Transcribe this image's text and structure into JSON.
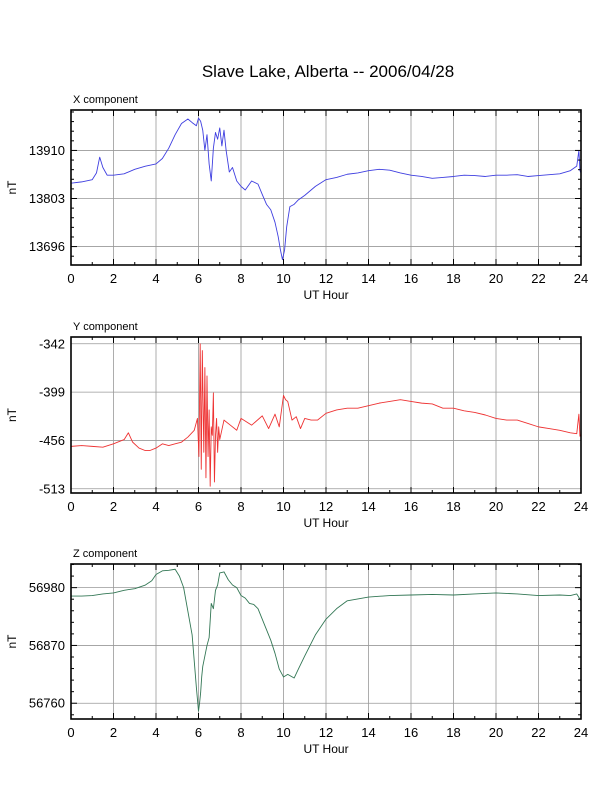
{
  "page_title": "Slave Lake, Alberta -- 2006/04/28",
  "chart_data": [
    {
      "type": "line",
      "title": "X component",
      "xlabel": "UT Hour",
      "ylabel": "nT",
      "color": "#3f3fe0",
      "xlim": [
        0,
        24
      ],
      "ylim": [
        13655,
        14000
      ],
      "xticks": [
        0,
        2,
        4,
        6,
        8,
        10,
        12,
        14,
        16,
        18,
        20,
        22,
        24
      ],
      "yticks": [
        13696,
        13803,
        13910
      ],
      "grid": true,
      "series": [
        {
          "x": [
            0,
            0.5,
            1.0,
            1.2,
            1.35,
            1.5,
            1.7,
            2.0,
            2.5,
            3.0,
            3.5,
            4.0,
            4.3,
            4.6,
            4.9,
            5.2,
            5.5,
            5.7,
            5.9,
            6.0,
            6.1,
            6.2,
            6.3,
            6.4,
            6.5,
            6.6,
            6.7,
            6.8,
            6.9,
            7.0,
            7.1,
            7.2,
            7.3,
            7.45,
            7.6,
            7.8,
            8.0,
            8.2,
            8.5,
            8.8,
            9.0,
            9.2,
            9.4,
            9.6,
            9.75,
            9.85,
            9.95,
            10.05,
            10.15,
            10.3,
            10.5,
            10.7,
            11.0,
            11.5,
            12.0,
            12.5,
            13.0,
            13.5,
            14.0,
            14.5,
            15.0,
            15.5,
            16.0,
            16.5,
            17.0,
            17.5,
            18.0,
            18.5,
            19.0,
            19.5,
            20.0,
            20.5,
            21.0,
            21.5,
            22.0,
            22.5,
            23.0,
            23.5,
            23.8,
            23.9,
            23.95,
            24.0
          ],
          "values": [
            13837,
            13840,
            13845,
            13860,
            13895,
            13872,
            13855,
            13855,
            13858,
            13868,
            13875,
            13880,
            13892,
            13915,
            13945,
            13970,
            13980,
            13972,
            13965,
            13982,
            13975,
            13955,
            13910,
            13945,
            13880,
            13842,
            13915,
            13950,
            13935,
            13960,
            13920,
            13955,
            13910,
            13862,
            13872,
            13842,
            13830,
            13822,
            13842,
            13835,
            13812,
            13790,
            13778,
            13750,
            13718,
            13690,
            13667,
            13688,
            13740,
            13785,
            13790,
            13800,
            13810,
            13830,
            13845,
            13850,
            13857,
            13860,
            13865,
            13868,
            13866,
            13860,
            13855,
            13852,
            13848,
            13850,
            13852,
            13855,
            13854,
            13852,
            13855,
            13855,
            13856,
            13852,
            13854,
            13856,
            13858,
            13865,
            13875,
            13910,
            13865,
            13860
          ]
        }
      ]
    },
    {
      "type": "line",
      "title": "Y component",
      "xlabel": "UT Hour",
      "ylabel": "nT",
      "color": "#ee3333",
      "xlim": [
        0,
        24
      ],
      "ylim": [
        -518,
        -334
      ],
      "xticks": [
        0,
        2,
        4,
        6,
        8,
        10,
        12,
        14,
        16,
        18,
        20,
        22,
        24
      ],
      "yticks": [
        -342,
        -399,
        -456,
        -513
      ],
      "grid": true,
      "series": [
        {
          "x": [
            0,
            0.5,
            1.0,
            1.5,
            2.0,
            2.5,
            2.7,
            2.9,
            3.2,
            3.5,
            3.7,
            4.0,
            4.3,
            4.6,
            4.9,
            5.2,
            5.5,
            5.8,
            5.95,
            6.02,
            6.08,
            6.13,
            6.18,
            6.25,
            6.3,
            6.35,
            6.4,
            6.45,
            6.5,
            6.55,
            6.6,
            6.65,
            6.7,
            6.75,
            6.8,
            6.85,
            6.9,
            6.95,
            7.0,
            7.2,
            7.5,
            7.8,
            8.0,
            8.5,
            9.0,
            9.3,
            9.6,
            9.8,
            10.0,
            10.1,
            10.2,
            10.4,
            10.6,
            10.8,
            11.0,
            11.3,
            11.6,
            12.0,
            12.5,
            13.0,
            13.5,
            14.0,
            14.5,
            15.0,
            15.5,
            16.0,
            16.5,
            17.0,
            17.5,
            18.0,
            18.5,
            19.0,
            19.5,
            20.0,
            20.5,
            21.0,
            21.5,
            22.0,
            22.5,
            23.0,
            23.5,
            23.8,
            23.9,
            23.95,
            24.0
          ],
          "values": [
            -463,
            -462,
            -463,
            -464,
            -460,
            -455,
            -447,
            -458,
            -465,
            -468,
            -468,
            -465,
            -460,
            -462,
            -460,
            -458,
            -452,
            -444,
            -430,
            -475,
            -342,
            -490,
            -350,
            -470,
            -370,
            -500,
            -380,
            -475,
            -420,
            -510,
            -440,
            -450,
            -400,
            -505,
            -450,
            -430,
            -470,
            -440,
            -455,
            -432,
            -438,
            -444,
            -430,
            -438,
            -427,
            -442,
            -425,
            -440,
            -403,
            -408,
            -410,
            -432,
            -428,
            -442,
            -430,
            -432,
            -432,
            -424,
            -420,
            -418,
            -418,
            -415,
            -412,
            -410,
            -408,
            -410,
            -412,
            -413,
            -418,
            -418,
            -421,
            -423,
            -426,
            -430,
            -432,
            -432,
            -436,
            -440,
            -442,
            -444,
            -447,
            -448,
            -425,
            -451,
            -449
          ]
        }
      ]
    },
    {
      "type": "line",
      "title": "Z component",
      "xlabel": "UT Hour",
      "ylabel": "nT",
      "color": "#337755",
      "xlim": [
        0,
        24
      ],
      "ylim": [
        56730,
        57025
      ],
      "xticks": [
        0,
        2,
        4,
        6,
        8,
        10,
        12,
        14,
        16,
        18,
        20,
        22,
        24
      ],
      "yticks": [
        56760,
        56870,
        56980
      ],
      "grid": true,
      "series": [
        {
          "x": [
            0,
            0.5,
            1.0,
            1.5,
            2.0,
            2.5,
            3.0,
            3.5,
            3.8,
            4.0,
            4.3,
            4.6,
            4.9,
            5.1,
            5.3,
            5.5,
            5.7,
            5.8,
            5.9,
            6.0,
            6.05,
            6.1,
            6.15,
            6.2,
            6.3,
            6.4,
            6.5,
            6.6,
            6.7,
            6.8,
            6.9,
            7.0,
            7.2,
            7.4,
            7.6,
            7.8,
            8.0,
            8.2,
            8.4,
            8.6,
            8.8,
            9.0,
            9.2,
            9.4,
            9.6,
            9.8,
            10.0,
            10.2,
            10.5,
            10.7,
            11.0,
            11.5,
            12.0,
            12.5,
            13.0,
            14.0,
            15.0,
            16.0,
            17.0,
            18.0,
            19.0,
            20.0,
            21.0,
            22.0,
            23.0,
            23.5,
            23.8,
            24.0
          ],
          "values": [
            56964,
            56964,
            56965,
            56968,
            56970,
            56975,
            56978,
            56985,
            56993,
            57005,
            57012,
            57013,
            57015,
            57002,
            56980,
            56935,
            56890,
            56840,
            56790,
            56745,
            56760,
            56780,
            56810,
            56830,
            56850,
            56870,
            56885,
            56950,
            56940,
            56975,
            56985,
            57008,
            57010,
            56995,
            56985,
            56980,
            56965,
            56960,
            56950,
            56948,
            56940,
            56920,
            56900,
            56880,
            56855,
            56825,
            56810,
            56815,
            56808,
            56825,
            56850,
            56890,
            56920,
            56940,
            56955,
            56962,
            56965,
            56966,
            56967,
            56966,
            56968,
            56970,
            56968,
            56965,
            56966,
            56965,
            56968,
            56955
          ]
        }
      ]
    }
  ]
}
